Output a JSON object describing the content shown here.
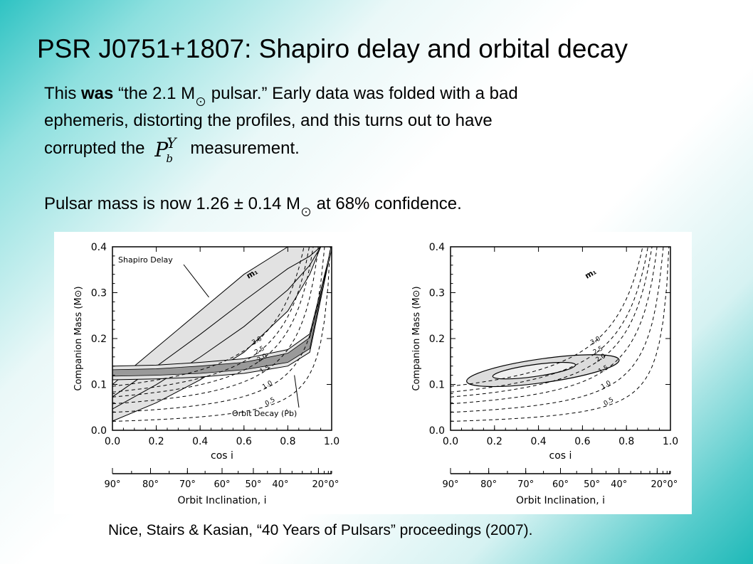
{
  "slide": {
    "title": "PSR J0751+1807: Shapiro delay and orbital decay",
    "line1_a": "This ",
    "line1_b": "was",
    "line1_c": " “the 2.1 M",
    "line1_d": " pulsar.”  Early data was folded with a bad",
    "line2": "ephemeris, distorting the profiles, and this turns out to have",
    "line3_a": "corrupted the",
    "line3_b": "measurement.",
    "pbdot_symbol": {
      "base": "P",
      "sup": "Y",
      "sub": "b"
    },
    "mass_a": "Pulsar mass is now 1.26 ± 0.14 M",
    "mass_b": " at 68% confidence.",
    "caption": "Nice, Stairs & Kasian, “40 Years of Pulsars” proceedings (2007)."
  },
  "chart_data": [
    {
      "type": "line",
      "xlabel": "cos i",
      "ylabel": "Companion Mass (M⊙)",
      "xlim": [
        0.0,
        1.0
      ],
      "ylim": [
        0.0,
        0.4
      ],
      "x_ticks": [
        "0.0",
        "0.2",
        "0.4",
        "0.6",
        "0.8",
        "1.0"
      ],
      "y_ticks": [
        "0.0",
        "0.1",
        "0.2",
        "0.3",
        "0.4"
      ],
      "top_axis_label": "Orbit Inclination, i",
      "top_ticks": [
        "90°",
        "80°",
        "70°",
        "60°",
        "50°",
        "40°",
        "20°0°"
      ],
      "mass_label": "m₁",
      "mass_curves": [
        "3.0",
        "2.5",
        "2.0",
        "1.5",
        "1.0",
        "0.5"
      ],
      "annotations": [
        "Shapiro Delay",
        "Orbit Decay (Ṗb)"
      ],
      "shapiro_band": {
        "x": [
          0,
          0.2,
          0.4,
          0.6,
          0.8,
          0.9,
          0.95
        ],
        "lower": [
          0.02,
          0.06,
          0.11,
          0.17,
          0.26,
          0.34,
          0.4
        ],
        "upper": [
          0.1,
          0.18,
          0.26,
          0.34,
          0.4,
          0.4,
          0.4
        ]
      },
      "orbit_decay_band": {
        "x": [
          0,
          0.2,
          0.4,
          0.6,
          0.8,
          0.9,
          1.0
        ],
        "lower": [
          0.11,
          0.112,
          0.116,
          0.124,
          0.14,
          0.17,
          0.4
        ],
        "upper": [
          0.14,
          0.142,
          0.148,
          0.156,
          0.176,
          0.21,
          0.4
        ]
      }
    },
    {
      "type": "line",
      "xlabel": "cos i",
      "ylabel": "Companion Mass (M⊙)",
      "xlim": [
        0.0,
        1.0
      ],
      "ylim": [
        0.0,
        0.4
      ],
      "x_ticks": [
        "0.0",
        "0.2",
        "0.4",
        "0.6",
        "0.8",
        "1.0"
      ],
      "y_ticks": [
        "0.0",
        "0.1",
        "0.2",
        "0.3",
        "0.4"
      ],
      "top_axis_label": "Orbit Inclination, i",
      "top_ticks": [
        "90°",
        "80°",
        "70°",
        "60°",
        "50°",
        "40°",
        "20°0°"
      ],
      "mass_label": "m₁",
      "mass_curves": [
        "3.0",
        "2.5",
        "2.0",
        "1.5",
        "1.0",
        "0.5"
      ],
      "confidence_ellipses": [
        {
          "center": [
            0.42,
            0.13
          ],
          "half_width": 0.35,
          "half_height": 0.026
        },
        {
          "center": [
            0.38,
            0.13
          ],
          "half_width": 0.19,
          "half_height": 0.013
        }
      ]
    }
  ],
  "colors": {
    "band_fill": "#e2e2e2",
    "band_dark": "#9a9a9a",
    "ellipse_fill": "#dcdcdc"
  }
}
